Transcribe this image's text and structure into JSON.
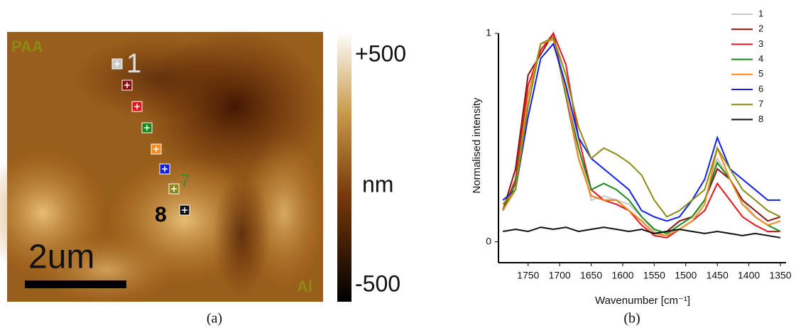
{
  "panel_a": {
    "region_top": "PAA",
    "region_bottom": "Al",
    "scale_bar": "2um",
    "colorbar": {
      "top": "+500",
      "unit": "nm",
      "bottom": "-500"
    },
    "point_labels": [
      "1",
      "7",
      "8"
    ]
  },
  "captions": [
    "(a)",
    "(b)"
  ],
  "chart_data": {
    "type": "line",
    "y_label": "Normalised intensity",
    "x_label": "Wavenumber [cm⁻¹]",
    "x": [
      1790,
      1770,
      1750,
      1730,
      1710,
      1690,
      1670,
      1650,
      1630,
      1610,
      1590,
      1570,
      1550,
      1530,
      1510,
      1490,
      1470,
      1450,
      1430,
      1410,
      1390,
      1370,
      1350
    ],
    "xlim": [
      1797,
      1341
    ],
    "xticks": [
      1750,
      1700,
      1650,
      1600,
      1550,
      1500,
      1450,
      1400,
      1350
    ],
    "ylim": [
      -0.1,
      1.0
    ],
    "yticks": [
      0,
      1
    ],
    "series": [
      {
        "name": "1",
        "color": "#c8c8c8",
        "values": [
          0.15,
          0.25,
          0.65,
          0.95,
          0.98,
          0.75,
          0.45,
          0.2,
          0.22,
          0.2,
          0.18,
          0.12,
          0.05,
          0.03,
          0.08,
          0.12,
          0.2,
          0.4,
          0.3,
          0.2,
          0.12,
          0.08,
          0.1
        ]
      },
      {
        "name": "2",
        "color": "#8b1010",
        "values": [
          0.15,
          0.35,
          0.8,
          0.9,
          1.0,
          0.7,
          0.4,
          0.22,
          0.2,
          0.2,
          0.15,
          0.1,
          0.04,
          0.05,
          0.1,
          0.12,
          0.2,
          0.35,
          0.3,
          0.2,
          0.15,
          0.1,
          0.12
        ]
      },
      {
        "name": "3",
        "color": "#e8141c",
        "values": [
          0.15,
          0.3,
          0.75,
          0.92,
          1.0,
          0.85,
          0.5,
          0.25,
          0.2,
          0.18,
          0.15,
          0.08,
          0.03,
          0.02,
          0.06,
          0.1,
          0.15,
          0.28,
          0.2,
          0.12,
          0.08,
          0.05,
          0.05
        ]
      },
      {
        "name": "4",
        "color": "#1a8a1a",
        "values": [
          0.15,
          0.28,
          0.7,
          0.95,
          0.98,
          0.7,
          0.45,
          0.25,
          0.28,
          0.25,
          0.2,
          0.12,
          0.06,
          0.04,
          0.08,
          0.12,
          0.2,
          0.38,
          0.3,
          0.18,
          0.12,
          0.08,
          0.05
        ]
      },
      {
        "name": "5",
        "color": "#f58a1e",
        "values": [
          0.15,
          0.25,
          0.7,
          0.95,
          0.97,
          0.72,
          0.4,
          0.22,
          0.2,
          0.2,
          0.15,
          0.1,
          0.04,
          0.03,
          0.06,
          0.1,
          0.18,
          0.45,
          0.3,
          0.18,
          0.12,
          0.08,
          0.1
        ]
      },
      {
        "name": "6",
        "color": "#1020e8",
        "values": [
          0.2,
          0.25,
          0.6,
          0.88,
          0.95,
          0.75,
          0.5,
          0.4,
          0.35,
          0.3,
          0.25,
          0.15,
          0.12,
          0.1,
          0.12,
          0.2,
          0.3,
          0.5,
          0.35,
          0.3,
          0.25,
          0.2,
          0.2
        ]
      },
      {
        "name": "7",
        "color": "#8a8a14",
        "values": [
          0.18,
          0.25,
          0.65,
          0.95,
          0.98,
          0.8,
          0.55,
          0.4,
          0.45,
          0.42,
          0.38,
          0.32,
          0.2,
          0.12,
          0.15,
          0.2,
          0.25,
          0.45,
          0.35,
          0.25,
          0.2,
          0.15,
          0.12
        ]
      },
      {
        "name": "8",
        "color": "#111111",
        "values": [
          0.05,
          0.06,
          0.05,
          0.07,
          0.06,
          0.07,
          0.05,
          0.06,
          0.07,
          0.06,
          0.05,
          0.06,
          0.04,
          0.05,
          0.06,
          0.05,
          0.04,
          0.05,
          0.04,
          0.03,
          0.04,
          0.03,
          0.02
        ]
      }
    ]
  }
}
